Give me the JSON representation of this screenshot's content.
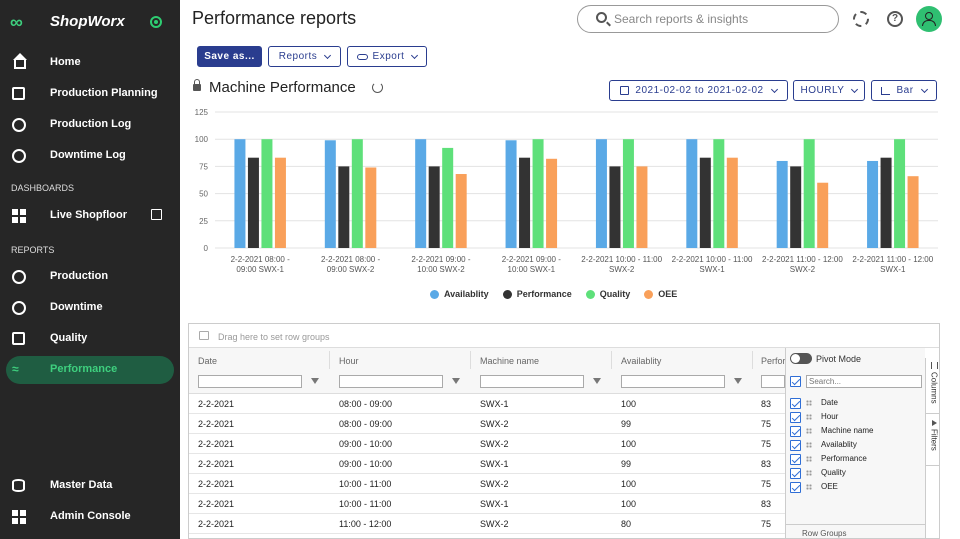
{
  "sidebar": {
    "brand": "ShopWorx",
    "items": [
      {
        "label": "Home",
        "icon": "home-icon"
      },
      {
        "label": "Production Planning",
        "icon": "calendar-icon"
      },
      {
        "label": "Production Log",
        "icon": "edit-icon"
      },
      {
        "label": "Downtime Log",
        "icon": "clock-history-icon"
      }
    ],
    "dashboards_label": "DASHBOARDS",
    "dashboards": [
      {
        "label": "Live Shopfloor",
        "icon": "dashboard-icon"
      }
    ],
    "reports_label": "REPORTS",
    "reports": [
      {
        "label": "Production",
        "icon": "gears-icon"
      },
      {
        "label": "Downtime",
        "icon": "timer-icon"
      },
      {
        "label": "Quality",
        "icon": "cube-icon"
      },
      {
        "label": "Performance",
        "icon": "trend-icon"
      }
    ],
    "bottom": [
      {
        "label": "Master Data",
        "icon": "database-icon"
      },
      {
        "label": "Admin Console",
        "icon": "sitemap-icon"
      }
    ]
  },
  "header": {
    "title": "Performance reports",
    "search_placeholder": "Search reports & insights"
  },
  "toolbar": {
    "save_as": "Save as...",
    "reports": "Reports",
    "export": "Export"
  },
  "report": {
    "title": "Machine Performance",
    "date_range": "2021-02-02 to 2021-02-02",
    "granularity": "HOURLY",
    "chart_type_label": "Bar"
  },
  "chart_data": {
    "type": "bar",
    "categories": [
      [
        "2-2-2021 08:00 -",
        "09:00 SWX-1"
      ],
      [
        "2-2-2021 08:00 -",
        "09:00 SWX-2"
      ],
      [
        "2-2-2021 09:00 -",
        "10:00 SWX-2"
      ],
      [
        "2-2-2021 09:00 -",
        "10:00 SWX-1"
      ],
      [
        "2-2-2021 10:00 - 11:00",
        "SWX-2"
      ],
      [
        "2-2-2021 10:00 - 11:00",
        "SWX-1"
      ],
      [
        "2-2-2021 11:00 - 12:00",
        "SWX-2"
      ],
      [
        "2-2-2021 11:00 - 12:00",
        "SWX-1"
      ]
    ],
    "series": [
      {
        "name": "Availablity",
        "color": "#5aa9e6",
        "values": [
          100,
          99,
          100,
          99,
          100,
          100,
          80,
          80
        ]
      },
      {
        "name": "Performance",
        "color": "#333333",
        "values": [
          83,
          75,
          75,
          83,
          75,
          83,
          75,
          83
        ]
      },
      {
        "name": "Quality",
        "color": "#5ee07a",
        "values": [
          100,
          100,
          92,
          100,
          100,
          100,
          100,
          100
        ]
      },
      {
        "name": "OEE",
        "color": "#f9a05a",
        "values": [
          83,
          74,
          68,
          82,
          75,
          83,
          60,
          66
        ]
      }
    ],
    "yticks": [
      0,
      25,
      50,
      75,
      100,
      125
    ],
    "ylim": [
      0,
      125
    ],
    "grid": true,
    "legend": "bottom"
  },
  "grid": {
    "row_group_hint": "Drag here to set row groups",
    "columns": [
      "Date",
      "Hour",
      "Machine name",
      "Availablity",
      "Perfor"
    ],
    "rows": [
      [
        "2-2-2021",
        "08:00 - 09:00",
        "SWX-1",
        "100",
        "83"
      ],
      [
        "2-2-2021",
        "08:00 - 09:00",
        "SWX-2",
        "99",
        "75"
      ],
      [
        "2-2-2021",
        "09:00 - 10:00",
        "SWX-2",
        "100",
        "75"
      ],
      [
        "2-2-2021",
        "09:00 - 10:00",
        "SWX-1",
        "99",
        "83"
      ],
      [
        "2-2-2021",
        "10:00 - 11:00",
        "SWX-2",
        "100",
        "75"
      ],
      [
        "2-2-2021",
        "10:00 - 11:00",
        "SWX-1",
        "100",
        "83"
      ],
      [
        "2-2-2021",
        "11:00 - 12:00",
        "SWX-2",
        "80",
        "75"
      ]
    ],
    "tool_panel": {
      "pivot_mode": "Pivot Mode",
      "search_placeholder": "Search...",
      "columns": [
        "Date",
        "Hour",
        "Machine name",
        "Availablity",
        "Performance",
        "Quality",
        "OEE"
      ],
      "row_groups": "Row Groups",
      "tab_columns": "Columns",
      "tab_filters": "Filters"
    }
  }
}
